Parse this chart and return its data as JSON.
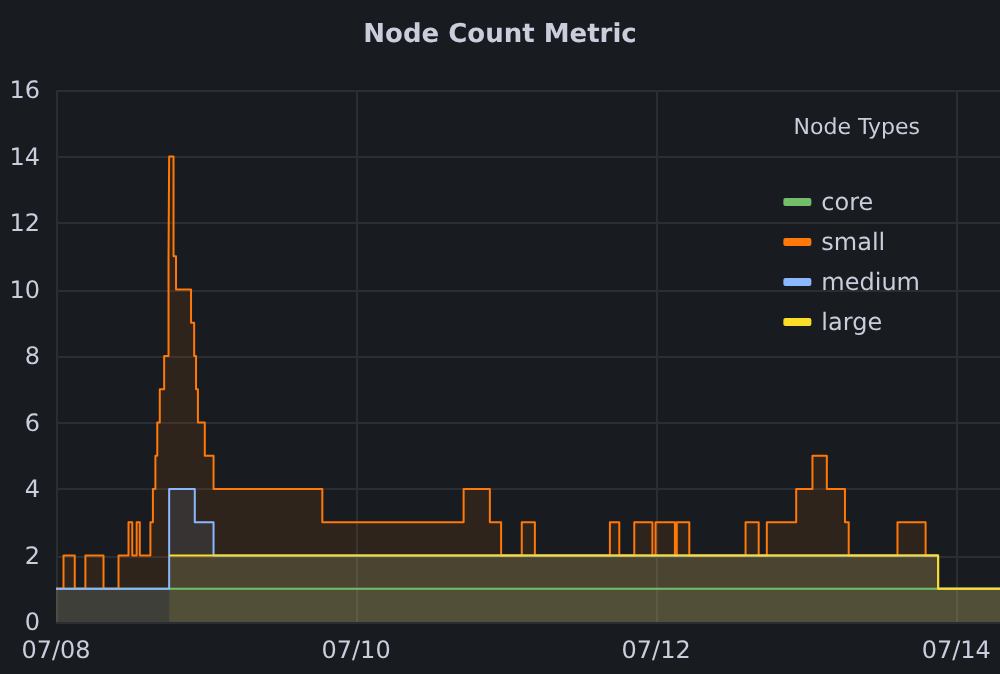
{
  "chart_data": {
    "type": "area",
    "title": "Node Count Metric",
    "legend_title": "Node Types",
    "legend": "top right",
    "grid": true,
    "marker": "none",
    "xlim": [
      "--07-08T00:00",
      "--07-14T07:00"
    ],
    "xticks": [
      {
        "value": "--07-08",
        "label": "07/08"
      },
      {
        "value": "--07-10",
        "label": "07/10"
      },
      {
        "value": "--07-12",
        "label": "07/12"
      },
      {
        "value": "--07-14",
        "label": "07/14"
      }
    ],
    "ylim": [
      0,
      16
    ],
    "yticks": [
      0,
      2,
      4,
      6,
      8,
      10,
      12,
      14,
      16
    ],
    "series": [
      {
        "name": "core",
        "color": "#73bf69",
        "x": [
          "--07-08T00:00",
          "--07-14T07:00"
        ],
        "values": [
          1,
          1
        ]
      },
      {
        "name": "small",
        "color": "#ff780a",
        "x": [
          "--07-08T00:00",
          "--07-08T01:12",
          "--07-08T01:12",
          "--07-08T03:00",
          "--07-08T03:00",
          "--07-08T04:42",
          "--07-08T04:42",
          "--07-08T07:36",
          "--07-08T07:36",
          "--07-08T10:00",
          "--07-08T10:00",
          "--07-08T11:36",
          "--07-08T11:36",
          "--07-08T12:12",
          "--07-08T12:12",
          "--07-08T12:54",
          "--07-08T12:54",
          "--07-08T13:24",
          "--07-08T13:24",
          "--07-08T15:06",
          "--07-08T15:06",
          "--07-08T15:30",
          "--07-08T15:30",
          "--07-08T15:54",
          "--07-08T15:54",
          "--07-08T16:12",
          "--07-08T16:12",
          "--07-08T16:36",
          "--07-08T16:36",
          "--07-08T17:18",
          "--07-08T17:18",
          "--07-08T18:00",
          "--07-08T18:00",
          "--07-08T18:06",
          "--07-08T18:06",
          "--07-08T18:48",
          "--07-08T18:48",
          "--07-08T19:12",
          "--07-08T19:12",
          "--07-08T21:36",
          "--07-08T21:36",
          "--07-08T22:06",
          "--07-08T22:06",
          "--07-08T22:24",
          "--07-08T22:24",
          "--07-08T22:42",
          "--07-08T22:42",
          "--07-08T23:48",
          "--07-08T23:48",
          "--07-09T01:12",
          "--07-09T01:12",
          "--07-09T18:36",
          "--07-09T18:36",
          "--07-10T17:12",
          "--07-10T17:12",
          "--07-10T21:24",
          "--07-10T21:24",
          "--07-10T23:12",
          "--07-10T23:12",
          "--07-11T02:30",
          "--07-11T02:30",
          "--07-11T04:36",
          "--07-11T04:36",
          "--07-11T16:36",
          "--07-11T16:36",
          "--07-11T18:06",
          "--07-11T18:06",
          "--07-11T20:30",
          "--07-11T20:30",
          "--07-11T23:24",
          "--07-11T23:24",
          "--07-11T23:54",
          "--07-11T23:54",
          "--07-12T03:00",
          "--07-12T03:00",
          "--07-12T03:18",
          "--07-12T03:18",
          "--07-12T05:18",
          "--07-12T05:18",
          "--07-12T14:18",
          "--07-12T14:18",
          "--07-12T16:24",
          "--07-12T16:24",
          "--07-12T17:42",
          "--07-12T17:42",
          "--07-12T22:24",
          "--07-12T22:24",
          "--07-13T01:00",
          "--07-13T01:00",
          "--07-13T03:18",
          "--07-13T03:18",
          "--07-13T06:12",
          "--07-13T06:12",
          "--07-13T06:48",
          "--07-13T06:48",
          "--07-13T14:36",
          "--07-13T14:36",
          "--07-13T19:06",
          "--07-13T19:06",
          "--07-13T21:06",
          "--07-13T21:06",
          "--07-14T07:00"
        ],
        "values": [
          1,
          1,
          2,
          2,
          1,
          1,
          2,
          2,
          1,
          1,
          2,
          2,
          3,
          3,
          2,
          2,
          3,
          3,
          2,
          2,
          3,
          3,
          4,
          4,
          5,
          5,
          6,
          6,
          7,
          7,
          8,
          8,
          11,
          11,
          14,
          14,
          11,
          11,
          10,
          10,
          9,
          9,
          8,
          8,
          7,
          7,
          6,
          6,
          5,
          5,
          4,
          4,
          3,
          3,
          4,
          4,
          3,
          3,
          2,
          2,
          3,
          3,
          2,
          2,
          3,
          3,
          2,
          2,
          3,
          3,
          2,
          2,
          3,
          3,
          2,
          2,
          3,
          3,
          2,
          2,
          3,
          3,
          2,
          2,
          3,
          3,
          4,
          4,
          5,
          5,
          4,
          4,
          3,
          3,
          2,
          2,
          3,
          3,
          2,
          2,
          1,
          1
        ]
      },
      {
        "name": "medium",
        "color": "#8ab8ff",
        "x": [
          "--07-08T00:00",
          "--07-08T18:06",
          "--07-08T18:06",
          "--07-08T22:12",
          "--07-08T22:12",
          "--07-09T01:12",
          "--07-09T01:12",
          "--07-13T21:06",
          "--07-13T21:06",
          "--07-14T07:00"
        ],
        "values": [
          1,
          1,
          4,
          4,
          3,
          3,
          2,
          2,
          1,
          1
        ]
      },
      {
        "name": "large",
        "color": "#fade2a",
        "x": [
          "--07-08T18:06",
          "--07-13T21:06",
          "--07-13T21:06",
          "--07-14T07:00"
        ],
        "values": [
          2,
          2,
          1,
          1
        ]
      }
    ]
  }
}
